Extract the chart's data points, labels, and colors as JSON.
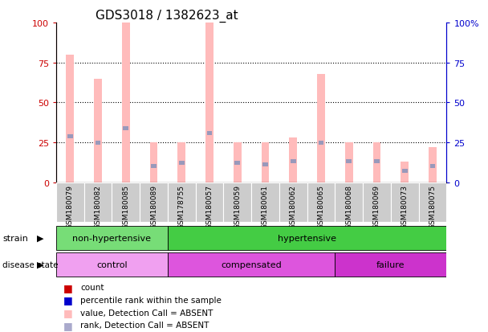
{
  "title": "GDS3018 / 1382623_at",
  "samples": [
    "GSM180079",
    "GSM180082",
    "GSM180085",
    "GSM180089",
    "GSM178755",
    "GSM180057",
    "GSM180059",
    "GSM180061",
    "GSM180062",
    "GSM180065",
    "GSM180068",
    "GSM180069",
    "GSM180073",
    "GSM180075"
  ],
  "pink_bars": [
    80,
    65,
    100,
    25,
    25,
    100,
    25,
    25,
    28,
    68,
    25,
    25,
    13,
    22
  ],
  "blue_markers": [
    29,
    25,
    34,
    10,
    12,
    31,
    12,
    11,
    13,
    25,
    13,
    13,
    7,
    10
  ],
  "strain_groups": [
    {
      "label": "non-hypertensive",
      "start": 0,
      "end": 4,
      "color": "#77dd77"
    },
    {
      "label": "hypertensive",
      "start": 4,
      "end": 14,
      "color": "#44cc44"
    }
  ],
  "disease_groups": [
    {
      "label": "control",
      "start": 0,
      "end": 4,
      "color": "#f0a0f0"
    },
    {
      "label": "compensated",
      "start": 4,
      "end": 10,
      "color": "#dd55dd"
    },
    {
      "label": "failure",
      "start": 10,
      "end": 14,
      "color": "#cc33cc"
    }
  ],
  "ylim": [
    0,
    100
  ],
  "yticks": [
    0,
    25,
    50,
    75,
    100
  ],
  "bg_color": "#ffffff",
  "left_axis_color": "#cc0000",
  "right_axis_color": "#0000cc",
  "pink_bar_color": "#ffbbbb",
  "blue_marker_color": "#9999bb",
  "xtick_bg": "#cccccc",
  "legend_items": [
    {
      "color": "#cc0000",
      "label": "count"
    },
    {
      "color": "#0000cc",
      "label": "percentile rank within the sample"
    },
    {
      "color": "#ffbbbb",
      "label": "value, Detection Call = ABSENT"
    },
    {
      "color": "#aaaacc",
      "label": "rank, Detection Call = ABSENT"
    }
  ]
}
